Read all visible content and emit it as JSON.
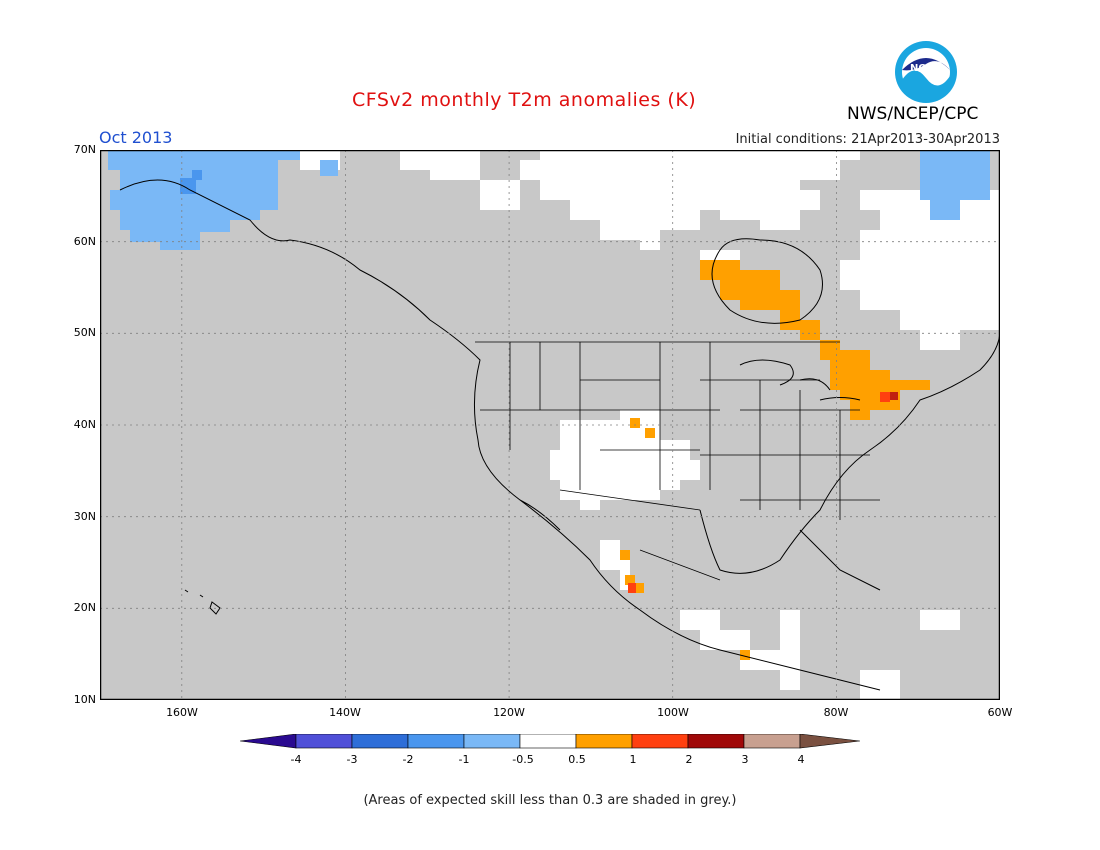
{
  "title": "CFSv2 monthly T2m anomalies (K)",
  "month_label": "Oct 2013",
  "initial_conditions": "Initial conditions: 21Apr2013-30Apr2013",
  "agency": "NWS/NCEP/CPC",
  "logo_text": "NOAA",
  "note": "(Areas of expected skill less than 0.3 are shaded in grey.)",
  "lat_ticks": [
    "70N",
    "60N",
    "50N",
    "40N",
    "30N",
    "20N",
    "10N"
  ],
  "lon_ticks": [
    "160W",
    "140W",
    "120W",
    "100W",
    "80W",
    "60W"
  ],
  "colorbar": {
    "labels": [
      "-4",
      "-3",
      "-2",
      "-1",
      "-0.5",
      "0.5",
      "1",
      "2",
      "3",
      "4"
    ],
    "colors": [
      "#2a0a90",
      "#5050d8",
      "#2e6ed8",
      "#4a96ee",
      "#7ab8f6",
      "#ffffff",
      "#ffa000",
      "#ff4010",
      "#a00808",
      "#c8a090",
      "#7a5040"
    ]
  },
  "colors": {
    "grey_skill": "#c8c8c8",
    "white": "#ffffff",
    "light_blue": "#7ab8f6",
    "blue": "#4a96ee",
    "orange": "#ffa000",
    "red": "#ff4010",
    "title_red": "#e01010",
    "month_blue": "#2050d0"
  }
}
